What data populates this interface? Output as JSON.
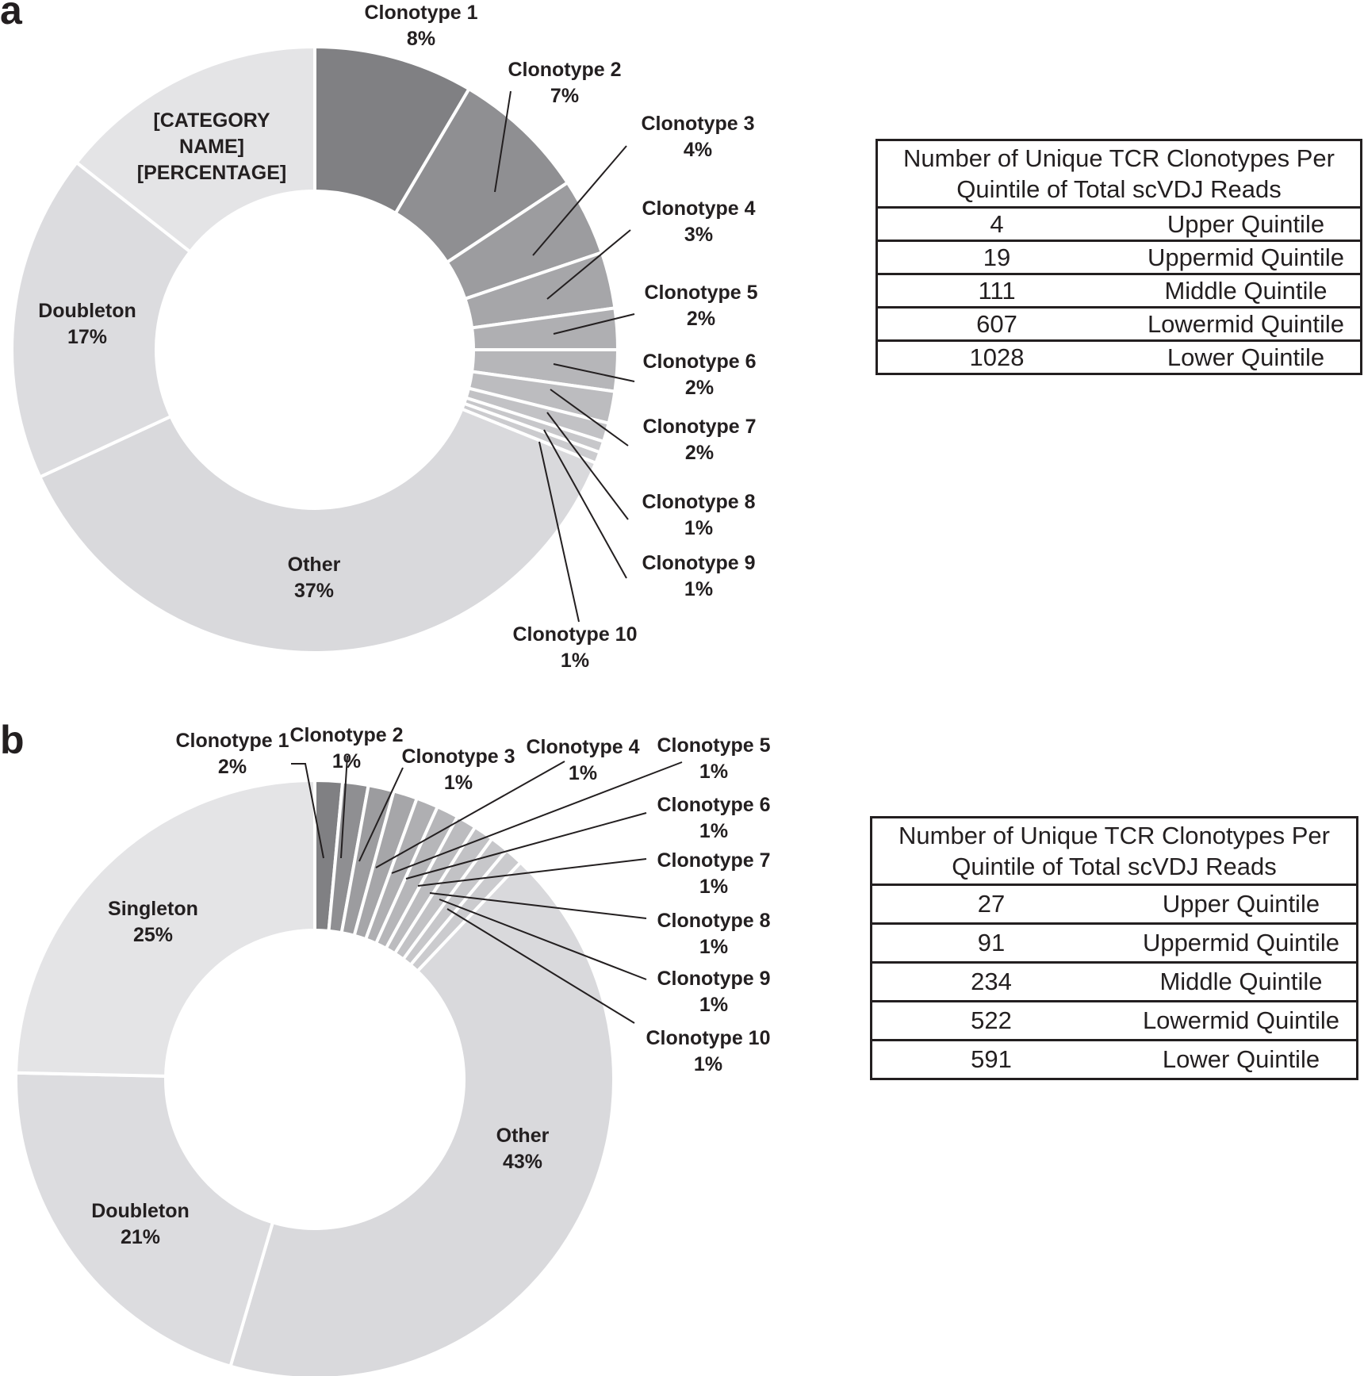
{
  "panels": {
    "a": {
      "letter": "a"
    },
    "b": {
      "letter": "b"
    }
  },
  "colors": {
    "clonotype_1": "#808083",
    "clonotype_2": "#8f8f92",
    "clonotype_3": "#9c9c9f",
    "clonotype_4": "#a6a6a9",
    "clonotype_5": "#afafb2",
    "clonotype_6": "#b6b6b9",
    "clonotype_7": "#bcbcbf",
    "clonotype_8": "#c2c2c5",
    "clonotype_9": "#c7c7ca",
    "clonotype_10": "#cbcbce",
    "light_category": "#e4e4e6",
    "doubleton": "#dcdcdf",
    "other": "#d9d9dc",
    "separator": "#ffffff",
    "ink": "#231f20"
  },
  "chart_data": [
    {
      "type": "pie",
      "variant": "donut",
      "panel": "a",
      "title": "",
      "slices": [
        {
          "label": "Clonotype 1",
          "pct_label": "8%",
          "value": 8.5
        },
        {
          "label": "Clonotype 2",
          "pct_label": "7%",
          "value": 7.2
        },
        {
          "label": "Clonotype 3",
          "pct_label": "4%",
          "value": 4.1
        },
        {
          "label": "Clonotype 4",
          "pct_label": "3%",
          "value": 3.0
        },
        {
          "label": "Clonotype 5",
          "pct_label": "2%",
          "value": 2.2
        },
        {
          "label": "Clonotype 6",
          "pct_label": "2%",
          "value": 2.2
        },
        {
          "label": "Clonotype 7",
          "pct_label": "2%",
          "value": 1.7
        },
        {
          "label": "Clonotype 8",
          "pct_label": "1%",
          "value": 1.0
        },
        {
          "label": "Clonotype 9",
          "pct_label": "1%",
          "value": 0.6
        },
        {
          "label": "Clonotype 10",
          "pct_label": "1%",
          "value": 0.6
        },
        {
          "label": "Other",
          "pct_label": "37%",
          "value": 37.0
        },
        {
          "label": "Doubleton",
          "pct_label": "17%",
          "value": 17.5
        },
        {
          "label": "[CATEGORY NAME]",
          "pct_label": "[PERCENTAGE]",
          "value": 14.4
        }
      ]
    },
    {
      "type": "pie",
      "variant": "donut",
      "panel": "b",
      "title": "",
      "slices": [
        {
          "label": "Clonotype 1",
          "pct_label": "2%",
          "value": 1.5
        },
        {
          "label": "Clonotype 2",
          "pct_label": "1%",
          "value": 1.4
        },
        {
          "label": "Clonotype 3",
          "pct_label": "1%",
          "value": 1.4
        },
        {
          "label": "Clonotype 4",
          "pct_label": "1%",
          "value": 1.3
        },
        {
          "label": "Clonotype 5",
          "pct_label": "1%",
          "value": 1.2
        },
        {
          "label": "Clonotype 6",
          "pct_label": "1%",
          "value": 1.2
        },
        {
          "label": "Clonotype 7",
          "pct_label": "1%",
          "value": 1.1
        },
        {
          "label": "Clonotype 8",
          "pct_label": "1%",
          "value": 1.1
        },
        {
          "label": "Clonotype 9",
          "pct_label": "1%",
          "value": 1.0
        },
        {
          "label": "Clonotype 10",
          "pct_label": "1%",
          "value": 1.0
        },
        {
          "label": "Other",
          "pct_label": "43%",
          "value": 42.9
        },
        {
          "label": "Doubleton",
          "pct_label": "21%",
          "value": 21.0
        },
        {
          "label": "Singleton",
          "pct_label": "25%",
          "value": 24.9
        }
      ]
    },
    {
      "type": "table",
      "panel": "a",
      "header": "Number of Unique TCR Clonotypes Per Quintile of Total scVDJ Reads",
      "rows": [
        {
          "count": "4",
          "quintile": "Upper Quintile"
        },
        {
          "count": "19",
          "quintile": "Uppermid Quintile"
        },
        {
          "count": "111",
          "quintile": "Middle Quintile"
        },
        {
          "count": "607",
          "quintile": "Lowermid Quintile"
        },
        {
          "count": "1028",
          "quintile": "Lower Quintile"
        }
      ]
    },
    {
      "type": "table",
      "panel": "b",
      "header": "Number of Unique TCR Clonotypes Per Quintile of Total scVDJ Reads",
      "rows": [
        {
          "count": "27",
          "quintile": "Upper Quintile"
        },
        {
          "count": "91",
          "quintile": "Uppermid Quintile"
        },
        {
          "count": "234",
          "quintile": "Middle Quintile"
        },
        {
          "count": "522",
          "quintile": "Lowermid Quintile"
        },
        {
          "count": "591",
          "quintile": "Lower Quintile"
        }
      ]
    }
  ]
}
